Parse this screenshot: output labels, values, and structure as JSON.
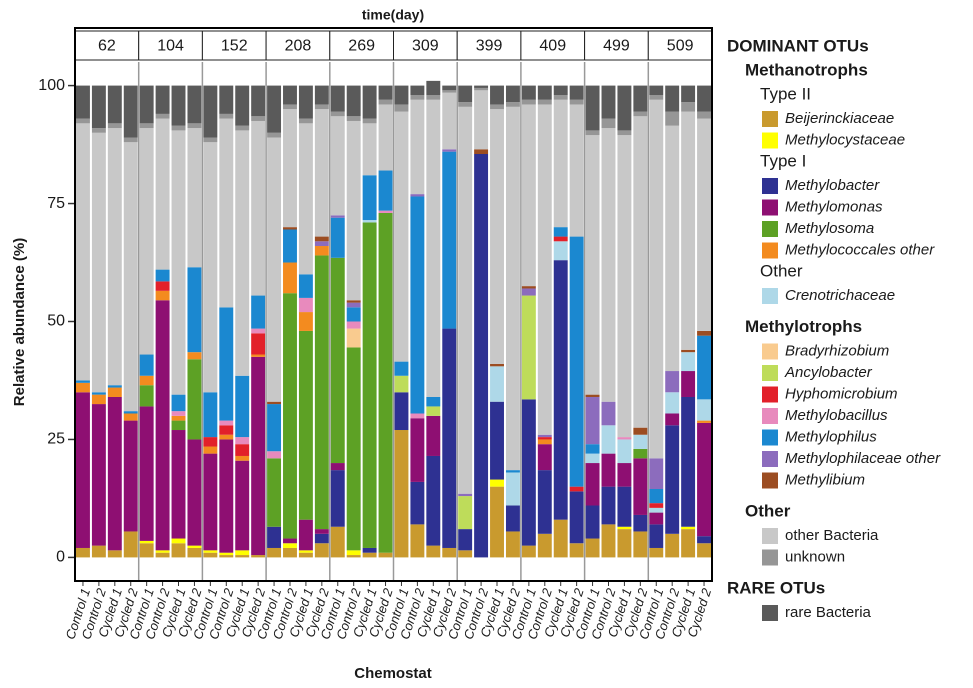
{
  "chart_data": {
    "type": "stacked_bar",
    "title": "time(day)",
    "x_label": "Chemostat",
    "y_label": "Relative abundance (%)",
    "facets": [
      "62",
      "104",
      "152",
      "208",
      "269",
      "309",
      "399",
      "409",
      "499",
      "509"
    ],
    "categories": [
      "Control 1",
      "Control 2",
      "Cycled 1",
      "Cycled 2"
    ],
    "ylim": [
      -5,
      105
    ],
    "yticks": [
      0,
      25,
      50,
      75,
      100
    ],
    "series": [
      {
        "name": "Beijerinckiaceae",
        "color": "#c99a2e",
        "italic": true,
        "headings": [
          {
            "text": "DOMINANT OTUs",
            "level": 1
          },
          {
            "text": "Methanotrophs",
            "level": 2
          },
          {
            "text": "Type II",
            "level": 3
          }
        ],
        "values": [
          [
            2,
            2.5,
            1.5,
            5.5
          ],
          [
            3,
            1,
            3,
            2
          ],
          [
            1,
            0.5,
            0.5,
            0.5
          ],
          [
            2,
            2,
            1,
            3
          ],
          [
            6.5,
            0.5,
            1,
            1
          ],
          [
            27,
            7,
            2.5,
            2
          ],
          [
            1.5,
            0,
            15,
            5.5
          ],
          [
            2.5,
            5,
            8,
            3
          ],
          [
            4,
            7,
            6,
            5.5
          ],
          [
            2,
            5,
            6,
            3
          ]
        ]
      },
      {
        "name": "Methylocystaceae",
        "color": "#ffff00",
        "italic": true,
        "values": [
          [
            0,
            0,
            0,
            0
          ],
          [
            0.5,
            0.5,
            1,
            0.5
          ],
          [
            0.5,
            0.5,
            1,
            0
          ],
          [
            0,
            1,
            0.5,
            0
          ],
          [
            0,
            1,
            0,
            0
          ],
          [
            0,
            0,
            0,
            0
          ],
          [
            0,
            0,
            1.5,
            0
          ],
          [
            0,
            0,
            0,
            0
          ],
          [
            0,
            0,
            0.5,
            0
          ],
          [
            0,
            0,
            0.5,
            0
          ]
        ]
      },
      {
        "name": "Methylobacter",
        "color": "#2e3192",
        "italic": true,
        "headings": [
          {
            "text": "Type I",
            "level": 3
          }
        ],
        "values": [
          [
            0,
            0,
            0,
            0
          ],
          [
            0,
            0,
            0,
            0
          ],
          [
            0,
            0,
            0,
            0
          ],
          [
            4.5,
            0,
            0,
            2
          ],
          [
            12,
            0,
            1,
            0
          ],
          [
            8,
            9,
            19,
            46.5
          ],
          [
            4.5,
            85.5,
            16.5,
            5.5
          ],
          [
            31,
            13.5,
            55,
            11
          ],
          [
            7,
            8,
            8.5,
            3.5
          ],
          [
            5,
            23,
            27.5,
            1.5
          ]
        ]
      },
      {
        "name": "Methylomonas",
        "color": "#8e0f72",
        "italic": true,
        "values": [
          [
            33,
            30,
            32.5,
            23.5
          ],
          [
            28.5,
            53,
            23,
            22.5
          ],
          [
            20.5,
            24,
            19,
            42
          ],
          [
            0,
            1,
            6.5,
            1
          ],
          [
            1.5,
            0,
            0,
            0
          ],
          [
            0,
            13.5,
            8.5,
            0
          ],
          [
            0,
            0,
            0,
            0
          ],
          [
            0,
            5.5,
            0,
            0
          ],
          [
            9,
            7,
            5,
            12
          ],
          [
            2.5,
            2.5,
            5.5,
            24
          ]
        ]
      },
      {
        "name": "Methylosoma",
        "color": "#5da125",
        "italic": true,
        "values": [
          [
            0,
            0,
            0,
            0
          ],
          [
            4.5,
            0,
            2,
            17
          ],
          [
            0,
            0,
            0,
            0
          ],
          [
            14.5,
            52,
            40,
            58
          ],
          [
            43.5,
            43,
            69,
            72
          ],
          [
            0,
            0,
            0,
            0
          ],
          [
            0,
            0,
            0,
            0
          ],
          [
            0,
            0,
            0,
            0
          ],
          [
            0,
            0,
            0,
            2
          ],
          [
            0,
            0,
            0,
            0
          ]
        ]
      },
      {
        "name": "Methylococcales other",
        "color": "#f38b1f",
        "italic": true,
        "values": [
          [
            2,
            2,
            2,
            1.5
          ],
          [
            2,
            2,
            1,
            1.5
          ],
          [
            1.5,
            1,
            1,
            0.5
          ],
          [
            0,
            6.5,
            4,
            2
          ],
          [
            0,
            0,
            0,
            0
          ],
          [
            0,
            0,
            0,
            0
          ],
          [
            0,
            0,
            0,
            0
          ],
          [
            0,
            1,
            0,
            0
          ],
          [
            0,
            0,
            0,
            0
          ],
          [
            0,
            0,
            0,
            0.5
          ]
        ]
      },
      {
        "name": "Crenotrichaceae",
        "color": "#aed8e8",
        "italic": true,
        "headings": [
          {
            "text": "Other",
            "level": 3
          }
        ],
        "values": [
          [
            0,
            0,
            0,
            0
          ],
          [
            0,
            0,
            0,
            0
          ],
          [
            0,
            0,
            0,
            0
          ],
          [
            0,
            0,
            0,
            0
          ],
          [
            0,
            0,
            0.5,
            0
          ],
          [
            0,
            0,
            0,
            0
          ],
          [
            0,
            0,
            7.5,
            7
          ],
          [
            0,
            0,
            4,
            0
          ],
          [
            2,
            6,
            5,
            3
          ],
          [
            1,
            4.5,
            4,
            4.5
          ]
        ]
      },
      {
        "name": "Bradyrhizobium",
        "color": "#f9cb8f",
        "italic": true,
        "headings": [
          {
            "text": "Methylotrophs",
            "level": 2
          }
        ],
        "values": [
          [
            0,
            0,
            0,
            0
          ],
          [
            0,
            0,
            0,
            0
          ],
          [
            0,
            0,
            0,
            0
          ],
          [
            0,
            0,
            0,
            0
          ],
          [
            0,
            4,
            0,
            0
          ],
          [
            0,
            0,
            0,
            0
          ],
          [
            0,
            0,
            0,
            0
          ],
          [
            0,
            0,
            0,
            0
          ],
          [
            0,
            0,
            0,
            0
          ],
          [
            0,
            0,
            0,
            0
          ]
        ]
      },
      {
        "name": "Ancylobacter",
        "color": "#bedc5a",
        "italic": true,
        "values": [
          [
            0,
            0,
            0,
            0
          ],
          [
            0,
            0,
            0,
            0
          ],
          [
            0,
            0,
            0,
            0
          ],
          [
            0,
            0,
            0,
            0
          ],
          [
            0,
            0,
            0,
            0
          ],
          [
            3.5,
            0,
            2,
            0
          ],
          [
            7,
            0,
            0,
            0
          ],
          [
            22,
            0,
            0,
            0
          ],
          [
            0,
            0,
            0,
            0
          ],
          [
            0,
            0,
            0,
            0
          ]
        ]
      },
      {
        "name": "Hyphomicrobium",
        "color": "#e2202a",
        "italic": true,
        "values": [
          [
            0,
            0,
            0,
            0
          ],
          [
            0,
            2,
            0,
            0
          ],
          [
            2,
            2,
            2.5,
            4.5
          ],
          [
            0,
            0,
            0,
            0
          ],
          [
            0,
            0,
            0,
            0
          ],
          [
            0,
            0,
            0,
            0
          ],
          [
            0,
            0,
            0,
            0
          ],
          [
            0,
            0.5,
            1,
            1
          ],
          [
            0,
            0,
            0,
            0
          ],
          [
            1,
            0,
            0,
            0
          ]
        ]
      },
      {
        "name": "Methylobacillus",
        "color": "#e88abd",
        "italic": true,
        "values": [
          [
            0,
            0,
            0,
            0
          ],
          [
            0,
            0,
            1,
            0
          ],
          [
            0,
            1,
            1.5,
            1
          ],
          [
            1.5,
            0,
            3,
            0
          ],
          [
            0,
            1.5,
            0,
            0.5
          ],
          [
            0,
            1,
            0,
            0
          ],
          [
            0,
            0,
            0,
            0
          ],
          [
            0,
            0,
            0,
            0
          ],
          [
            0,
            0,
            0.5,
            0
          ],
          [
            0,
            0,
            0,
            0
          ]
        ]
      },
      {
        "name": "Methylophilus",
        "color": "#1b88d0",
        "italic": true,
        "values": [
          [
            0.5,
            0.5,
            0.5,
            0.5
          ],
          [
            4.5,
            2.5,
            3.5,
            18
          ],
          [
            9.5,
            24,
            13,
            7
          ],
          [
            10,
            7,
            5,
            0
          ],
          [
            8.5,
            3,
            9.5,
            8.5
          ],
          [
            3,
            46,
            2,
            37.5
          ],
          [
            0,
            0,
            0,
            0.5
          ],
          [
            0,
            0,
            2,
            53
          ],
          [
            2,
            0,
            0,
            0
          ],
          [
            3,
            0,
            0,
            13.5
          ]
        ]
      },
      {
        "name": "Methylophilaceae other",
        "color": "#8c6cbd",
        "italic": true,
        "values": [
          [
            0,
            0,
            0,
            0
          ],
          [
            0,
            0,
            0,
            0
          ],
          [
            0,
            0,
            0,
            0
          ],
          [
            0,
            0,
            0,
            1
          ],
          [
            0.5,
            1,
            0,
            0
          ],
          [
            0,
            0.5,
            0,
            0.5
          ],
          [
            0.5,
            0,
            0,
            0
          ],
          [
            1.5,
            0.5,
            0,
            0
          ],
          [
            10,
            5,
            0,
            0
          ],
          [
            6.5,
            4.5,
            0,
            0
          ]
        ]
      },
      {
        "name": "Methylibium",
        "color": "#9c4d22",
        "italic": true,
        "values": [
          [
            0,
            0,
            0,
            0
          ],
          [
            0,
            0,
            0,
            0
          ],
          [
            0,
            0,
            0,
            0
          ],
          [
            0.5,
            0.5,
            0,
            1
          ],
          [
            0,
            0.5,
            0,
            0
          ],
          [
            0,
            0,
            0,
            0
          ],
          [
            0,
            1,
            0.5,
            0
          ],
          [
            0.5,
            0,
            0,
            0
          ],
          [
            0.5,
            0,
            0,
            1.5
          ],
          [
            0,
            0,
            0.5,
            1
          ]
        ]
      },
      {
        "name": "other Bacteria",
        "color": "#c8c8c8",
        "italic": false,
        "headings": [
          {
            "text": "Other",
            "level": 2
          }
        ],
        "values": [
          [
            54.5,
            55,
            54.5,
            57
          ],
          [
            48,
            32,
            56,
            29.5
          ],
          [
            53,
            40,
            52,
            37
          ],
          [
            56,
            25,
            32,
            27
          ],
          [
            21,
            38,
            11,
            14
          ],
          [
            53,
            20,
            63,
            12
          ],
          [
            82,
            12.5,
            54,
            77
          ],
          [
            38.5,
            70,
            27,
            28
          ],
          [
            55,
            58,
            64,
            66
          ],
          [
            76,
            52,
            50.5,
            45
          ]
        ]
      },
      {
        "name": "unknown",
        "color": "#969696",
        "italic": false,
        "values": [
          [
            1,
            1,
            1,
            1
          ],
          [
            1,
            1,
            1,
            1
          ],
          [
            1,
            1,
            1,
            1
          ],
          [
            1,
            1,
            1,
            1
          ],
          [
            1,
            1,
            1,
            1
          ],
          [
            1.5,
            1,
            1,
            0.5
          ],
          [
            1,
            0.5,
            1,
            1
          ],
          [
            1,
            1,
            1,
            1
          ],
          [
            1,
            2,
            1,
            1
          ],
          [
            1,
            3,
            2,
            1.5
          ]
        ]
      },
      {
        "name": "rare Bacteria",
        "color": "#5a5a5a",
        "italic": false,
        "headings": [
          {
            "text": "RARE OTUs",
            "level": 1
          }
        ],
        "values": [
          [
            7,
            9,
            8,
            11
          ],
          [
            8,
            6,
            8.5,
            8
          ],
          [
            11,
            6,
            8.5,
            6.5
          ],
          [
            10,
            4,
            7,
            4
          ],
          [
            5.5,
            6.5,
            7,
            3
          ],
          [
            4,
            2,
            3,
            1
          ],
          [
            3.5,
            0.5,
            4,
            3.5
          ],
          [
            3,
            3,
            2,
            3
          ],
          [
            9.5,
            7,
            9.5,
            5.5
          ],
          [
            2,
            5.5,
            3.5,
            5.5
          ]
        ]
      }
    ]
  }
}
